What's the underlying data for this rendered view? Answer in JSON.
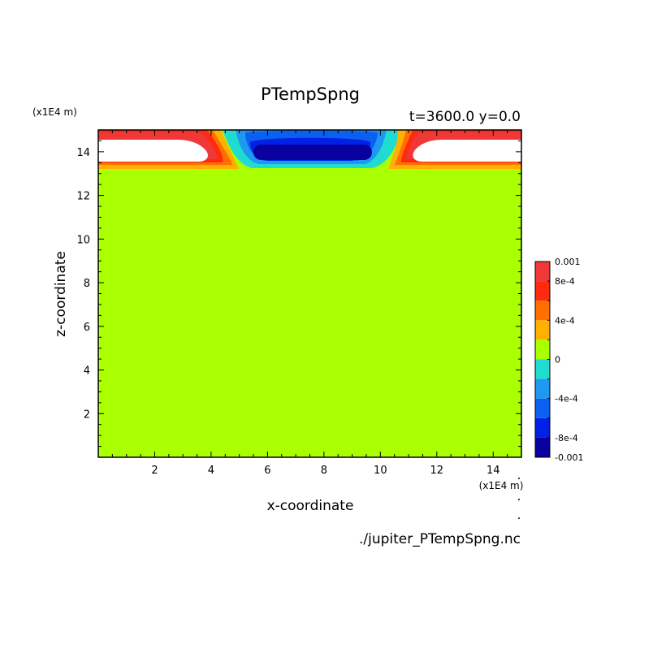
{
  "chart_data": {
    "type": "contour",
    "title": "PTempSpng",
    "subtitle": "t=3600.0 y=0.0",
    "xlabel": "x-coordinate",
    "ylabel": "z-coordinate",
    "x_unit": "(x1E4 m)",
    "y_unit": "(x1E4 m)",
    "footer": "./jupiter_PTempSpng.nc",
    "xlim": [
      0.0,
      15.0
    ],
    "ylim": [
      0.0,
      15.0
    ],
    "xticks": [
      2,
      4,
      6,
      8,
      10,
      12,
      14
    ],
    "yticks": [
      2,
      4,
      6,
      8,
      10,
      12,
      14
    ],
    "background_value": 0,
    "colorbar": {
      "levels": [
        -0.001,
        -0.0008,
        -0.0006,
        -0.0004,
        -0.0002,
        0,
        0.0002,
        0.0004,
        0.0006,
        0.0008,
        0.001
      ],
      "colors": [
        "#0a00a0",
        "#0020e6",
        "#0a60f0",
        "#1e98f0",
        "#20dcd0",
        "#aaff00",
        "#ffb000",
        "#ff7000",
        "#ff2a10",
        "#f03838"
      ],
      "tick_labels": [
        {
          "value": 0.001,
          "label": "0.001"
        },
        {
          "value": 0.0008,
          "label": "8e-4"
        },
        {
          "value": 0.0004,
          "label": "4e-4"
        },
        {
          "value": 0,
          "label": "0"
        },
        {
          "value": -0.0004,
          "label": "-4e-4"
        },
        {
          "value": -0.0008,
          "label": "-8e-4"
        },
        {
          "value": -0.001,
          "label": "-0.001"
        }
      ]
    },
    "features": [
      {
        "name": "negative-anomaly-center",
        "x_range": [
          4.4,
          10.6
        ],
        "z_range": [
          13.3,
          15.0
        ],
        "min_value": -0.001
      },
      {
        "name": "positive-anomaly-left",
        "x_range": [
          0.0,
          4.6
        ],
        "z_range": [
          13.3,
          15.0
        ],
        "max_value": 0.001,
        "saturated_region": {
          "x_range": [
            0.0,
            3.6
          ],
          "z_range": [
            13.5,
            14.5
          ]
        }
      },
      {
        "name": "positive-anomaly-right",
        "x_range": [
          10.4,
          15.0
        ],
        "z_range": [
          13.3,
          15.0
        ],
        "max_value": 0.001,
        "saturated_region": {
          "x_range": [
            11.2,
            15.0
          ],
          "z_range": [
            13.5,
            14.5
          ]
        }
      }
    ]
  }
}
